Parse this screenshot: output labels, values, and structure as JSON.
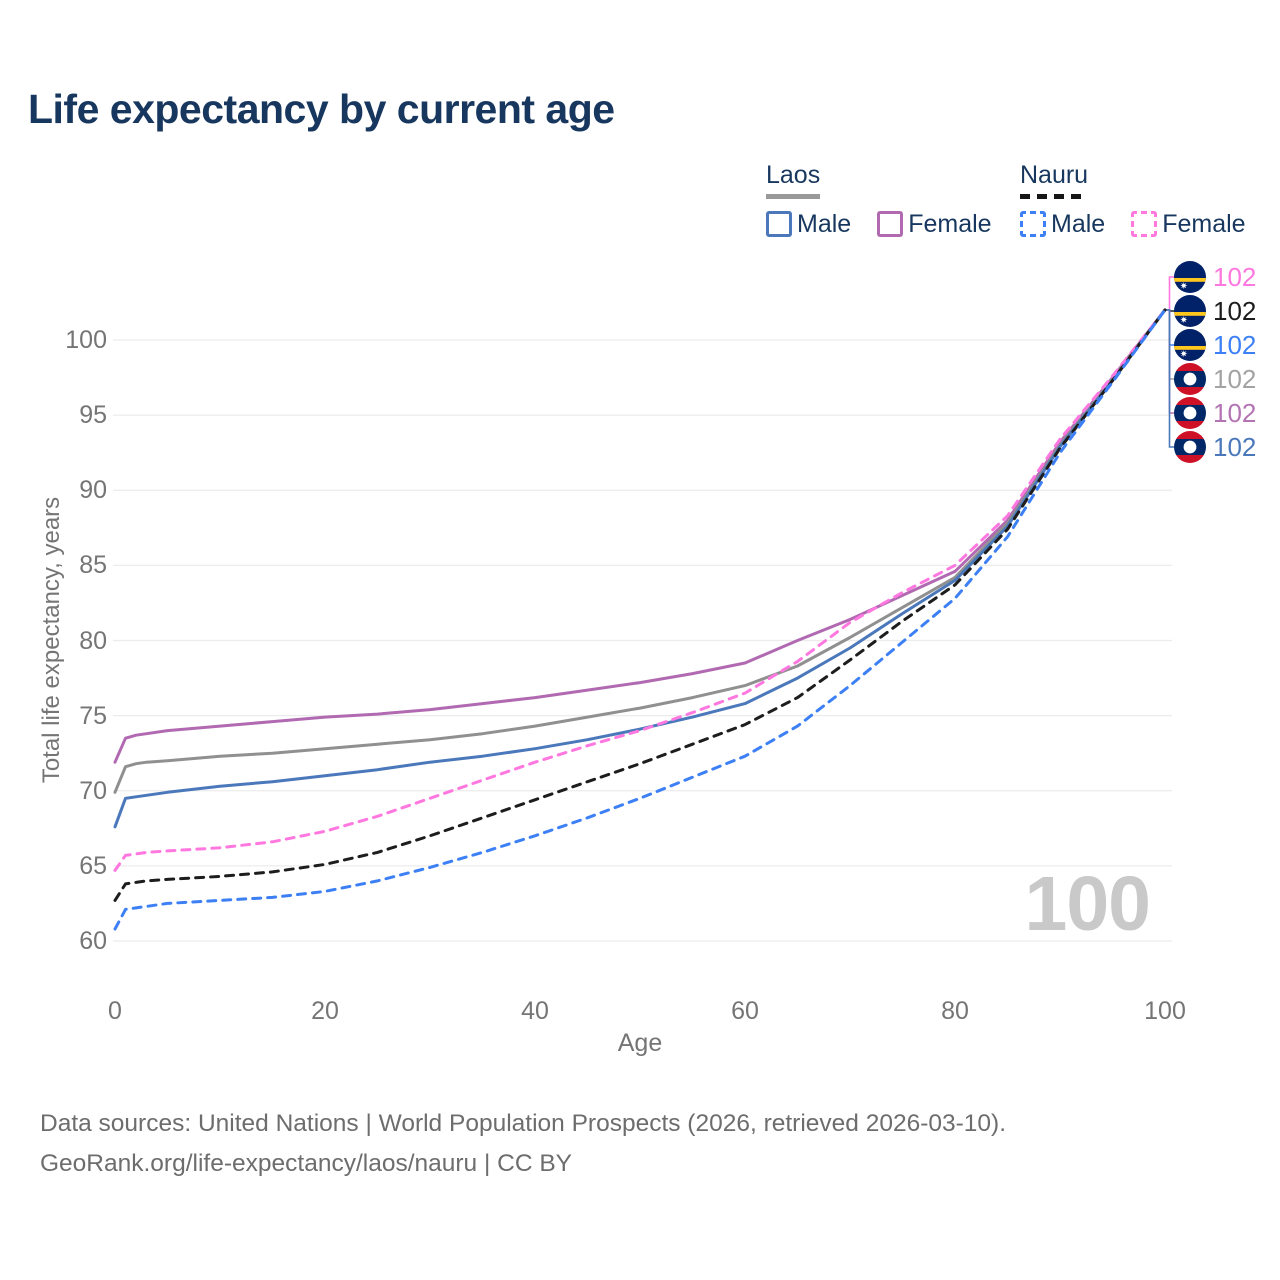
{
  "title": "Life expectancy by current age",
  "legend": {
    "groups": [
      {
        "country": "Laos",
        "line_style": "solid",
        "underline_color": "#999999",
        "items": [
          {
            "label": "Male",
            "color": "#4a78bb"
          },
          {
            "label": "Female",
            "color": "#b16ab2"
          }
        ]
      },
      {
        "country": "Nauru",
        "line_style": "dashed",
        "underline_color": "#161616",
        "items": [
          {
            "label": "Male",
            "color": "#3d80f5"
          },
          {
            "label": "Female",
            "color": "#ff78e0"
          }
        ]
      }
    ]
  },
  "y_axis": {
    "title": "Total life expectancy, years",
    "ticks": [
      60,
      65,
      70,
      75,
      80,
      85,
      90,
      95,
      100
    ]
  },
  "x_axis": {
    "title": "Age",
    "ticks": [
      0,
      20,
      40,
      60,
      80,
      100
    ]
  },
  "watermark": "100",
  "end_labels": [
    {
      "flag": "nauru",
      "series": "Nauru Female",
      "value": "102",
      "color": "#ff78e0"
    },
    {
      "flag": "nauru",
      "series": "Nauru Both sexes",
      "value": "102",
      "color": "#1d1d1d"
    },
    {
      "flag": "nauru",
      "series": "Nauru Male",
      "value": "102",
      "color": "#3d80f5"
    },
    {
      "flag": "laos",
      "series": "Laos Both sexes",
      "value": "102",
      "color": "#a3a3a3"
    },
    {
      "flag": "laos",
      "series": "Laos Female",
      "value": "102",
      "color": "#b474b4"
    },
    {
      "flag": "laos",
      "series": "Laos Male",
      "value": "102",
      "color": "#4a78bb"
    }
  ],
  "footer": {
    "line1": "Data sources: United Nations | World Population Prospects (2026, retrieved 2026-03-10).",
    "line2": "GeoRank.org/life-expectancy/laos/nauru | CC BY"
  },
  "chart_data": {
    "type": "line",
    "title": "Life expectancy by current age",
    "xlabel": "Age",
    "ylabel": "Total life expectancy, years",
    "xlim": [
      0,
      100
    ],
    "ylim": [
      58,
      103
    ],
    "grid": "horizontal",
    "gridline_color": "#ececec",
    "legend_position": "top-right",
    "end_value_all_series": 102,
    "x": [
      0,
      1,
      2,
      3,
      5,
      10,
      15,
      20,
      25,
      30,
      35,
      40,
      45,
      50,
      55,
      60,
      65,
      70,
      75,
      80,
      85,
      90,
      95,
      100
    ],
    "series": [
      {
        "name": "Laos Female",
        "country": "Laos",
        "sex": "Female",
        "style": "solid",
        "color": "#b16ab2",
        "values": [
          71.9,
          73.5,
          73.7,
          73.8,
          74.0,
          74.3,
          74.6,
          74.9,
          75.1,
          75.4,
          75.8,
          76.2,
          76.7,
          77.2,
          77.8,
          78.5,
          80.0,
          81.4,
          83.0,
          84.6,
          88.0,
          93.2,
          97.5,
          102
        ]
      },
      {
        "name": "Laos Both sexes",
        "country": "Laos",
        "sex": "Both",
        "style": "solid",
        "color": "#909090",
        "values": [
          69.9,
          71.6,
          71.8,
          71.9,
          72.0,
          72.3,
          72.5,
          72.8,
          73.1,
          73.4,
          73.8,
          74.3,
          74.9,
          75.5,
          76.2,
          77.0,
          78.3,
          80.2,
          82.2,
          84.2,
          87.8,
          93.0,
          97.4,
          102
        ]
      },
      {
        "name": "Laos Male",
        "country": "Laos",
        "sex": "Male",
        "style": "solid",
        "color": "#4a78bb",
        "values": [
          67.6,
          69.5,
          69.6,
          69.7,
          69.9,
          70.3,
          70.6,
          71.0,
          71.4,
          71.9,
          72.3,
          72.8,
          73.4,
          74.1,
          74.9,
          75.8,
          77.5,
          79.5,
          81.8,
          84.0,
          87.6,
          92.9,
          97.3,
          102
        ]
      },
      {
        "name": "Nauru Female",
        "country": "Nauru",
        "sex": "Female",
        "style": "dashed",
        "color": "#ff78e0",
        "values": [
          64.7,
          65.7,
          65.8,
          65.9,
          66.0,
          66.2,
          66.6,
          67.3,
          68.3,
          69.5,
          70.7,
          71.9,
          73.0,
          74.0,
          75.2,
          76.5,
          78.6,
          81.2,
          83.2,
          85.0,
          88.3,
          93.4,
          97.6,
          102
        ]
      },
      {
        "name": "Nauru Both sexes",
        "country": "Nauru",
        "sex": "Both",
        "style": "dashed",
        "color": "#1d1d1d",
        "values": [
          62.7,
          63.8,
          63.9,
          64.0,
          64.1,
          64.3,
          64.6,
          65.1,
          65.9,
          67.0,
          68.2,
          69.4,
          70.6,
          71.8,
          73.1,
          74.4,
          76.2,
          78.7,
          81.3,
          83.7,
          87.4,
          92.8,
          97.3,
          102
        ]
      },
      {
        "name": "Nauru Male",
        "country": "Nauru",
        "sex": "Male",
        "style": "dashed",
        "color": "#3d80f5",
        "values": [
          60.8,
          62.1,
          62.2,
          62.3,
          62.5,
          62.7,
          62.9,
          63.3,
          64.0,
          64.9,
          65.9,
          67.0,
          68.2,
          69.5,
          70.9,
          72.3,
          74.3,
          77.0,
          79.9,
          82.8,
          86.9,
          92.5,
          97.2,
          102
        ]
      }
    ],
    "flag_colors": {
      "nauru_blue": "#012169",
      "nauru_yellow": "#ffc61e",
      "laos_red": "#ce1126",
      "laos_blue": "#002868"
    }
  }
}
